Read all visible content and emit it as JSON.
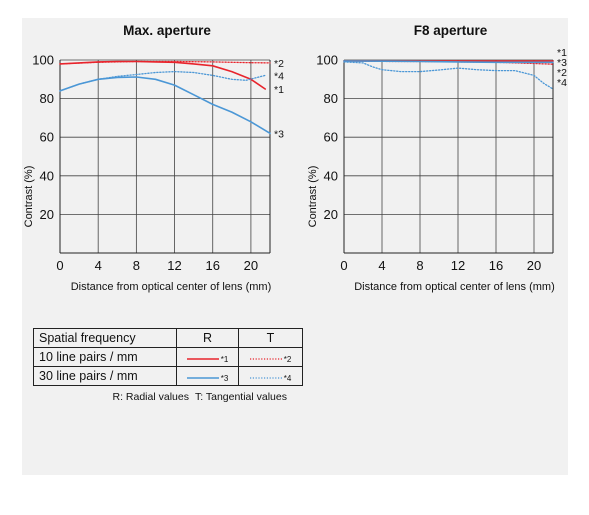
{
  "colors": {
    "red": "#e8242c",
    "blue": "#4b97d6",
    "grid": "#444444",
    "panel": "#f1f1f1"
  },
  "chart_data": [
    {
      "type": "line",
      "title": "Max. aperture",
      "xlabel": "Distance from optical center of lens (mm)",
      "ylabel": "Contrast (%)",
      "xlim": [
        0,
        22
      ],
      "ylim": [
        0,
        100
      ],
      "xticks": [
        0,
        4,
        8,
        12,
        16,
        20
      ],
      "yticks": [
        20,
        40,
        60,
        80,
        100
      ],
      "grid": true,
      "series": [
        {
          "name": "*1",
          "color": "red",
          "dash": "solid",
          "x": [
            0,
            2,
            4,
            6,
            8,
            10,
            12,
            14,
            16,
            18,
            20,
            21.5
          ],
          "y": [
            98,
            98.5,
            99,
            99.2,
            99.2,
            99,
            98.8,
            98,
            97,
            94,
            90,
            85
          ]
        },
        {
          "name": "*2",
          "color": "red",
          "dash": "dotted",
          "x": [
            0,
            4,
            8,
            12,
            16,
            20,
            22
          ],
          "y": [
            98,
            98.8,
            99.2,
            99.2,
            99,
            98.6,
            98.5
          ]
        },
        {
          "name": "*3",
          "color": "blue",
          "dash": "solid",
          "x": [
            0,
            2,
            4,
            6,
            8,
            10,
            12,
            14,
            16,
            18,
            20,
            22
          ],
          "y": [
            84,
            87.5,
            90,
            91,
            91.2,
            90,
            87,
            82,
            77,
            73,
            68,
            62
          ]
        },
        {
          "name": "*4",
          "color": "blue",
          "dash": "dotted",
          "x": [
            0,
            2,
            4,
            6,
            8,
            10,
            12,
            14,
            16,
            18,
            19.5,
            21.5
          ],
          "y": [
            84,
            87.5,
            90,
            91.5,
            92.5,
            93.5,
            94,
            93.5,
            92,
            90,
            89.5,
            92
          ]
        }
      ]
    },
    {
      "type": "line",
      "title": "F8 aperture",
      "xlabel": "Distance from optical center of lens (mm)",
      "ylabel": "Contrast (%)",
      "xlim": [
        0,
        22
      ],
      "ylim": [
        0,
        100
      ],
      "xticks": [
        0,
        4,
        8,
        12,
        16,
        20
      ],
      "yticks": [
        20,
        40,
        60,
        80,
        100
      ],
      "grid": true,
      "series": [
        {
          "name": "*1",
          "color": "red",
          "dash": "solid",
          "x": [
            0,
            4,
            8,
            12,
            16,
            20,
            22
          ],
          "y": [
            99.5,
            99.5,
            99.5,
            99.5,
            99.5,
            99.5,
            99.5
          ]
        },
        {
          "name": "*2",
          "color": "red",
          "dash": "dotted",
          "x": [
            0,
            4,
            8,
            12,
            16,
            20,
            22
          ],
          "y": [
            99.4,
            99.3,
            99.2,
            99,
            98.8,
            98.2,
            97.8
          ]
        },
        {
          "name": "*3",
          "color": "blue",
          "dash": "solid",
          "x": [
            0,
            4,
            8,
            12,
            16,
            20,
            22
          ],
          "y": [
            99.5,
            99.4,
            99.2,
            99,
            98.8,
            98.8,
            98.8
          ]
        },
        {
          "name": "*4",
          "color": "blue",
          "dash": "dotted",
          "x": [
            0,
            2,
            3,
            4,
            6,
            8,
            10,
            12,
            14,
            16,
            18,
            20,
            21,
            22
          ],
          "y": [
            99,
            98.5,
            96.5,
            95,
            94,
            94,
            94.8,
            95.8,
            95,
            94.5,
            94.5,
            92,
            88,
            85
          ]
        }
      ]
    }
  ],
  "legend": {
    "header": [
      "Spatial frequency",
      "R",
      "T"
    ],
    "rows": [
      {
        "label": "10 line pairs / mm",
        "r_mark": "*1",
        "t_mark": "*2",
        "color": "red"
      },
      {
        "label": "30 line pairs / mm",
        "r_mark": "*3",
        "t_mark": "*4",
        "color": "blue"
      }
    ],
    "note_r": "R: Radial values",
    "note_t": "T: Tangential values"
  }
}
